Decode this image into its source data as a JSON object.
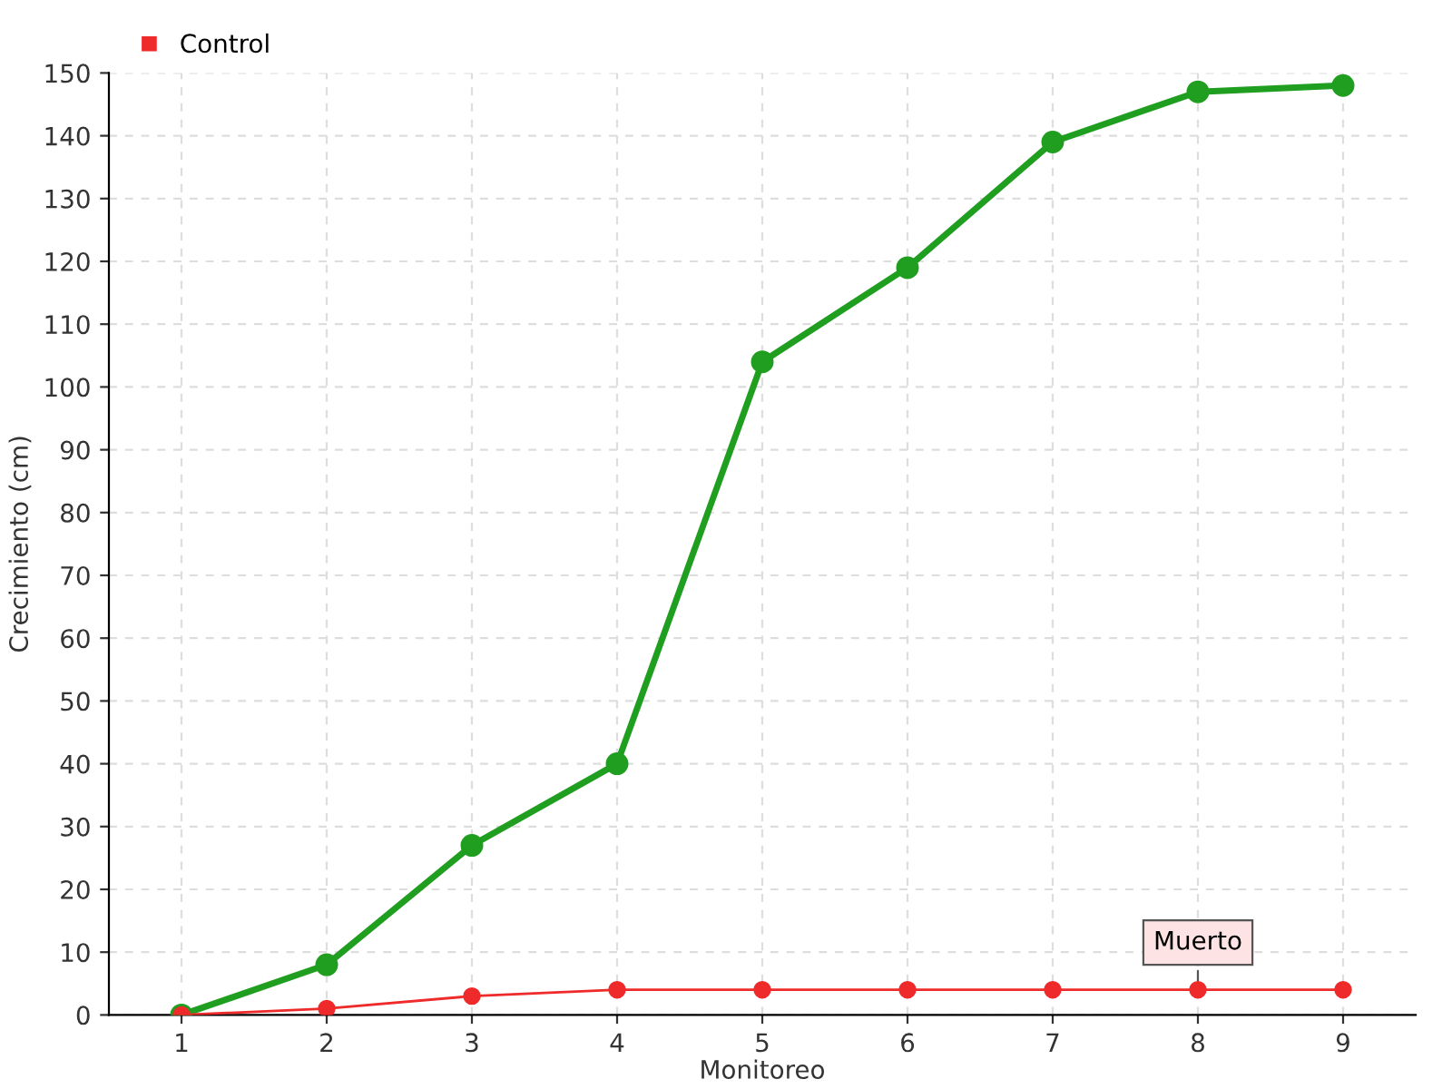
{
  "chart_data": {
    "type": "line",
    "xlabel": "Monitoreo",
    "ylabel": "Crecimiento (cm)",
    "x": [
      1,
      2,
      3,
      4,
      5,
      6,
      7,
      8,
      9
    ],
    "series": [
      {
        "color": "#1f9e1f",
        "values": [
          0,
          8,
          27,
          40,
          104,
          119,
          139,
          147,
          148
        ]
      },
      {
        "name": "Control",
        "color": "#ee2a2a",
        "values": [
          0,
          1,
          3,
          4,
          4,
          4,
          4,
          4,
          4
        ]
      }
    ],
    "xlim": [
      0.5,
      9.5
    ],
    "xticks": [
      1,
      2,
      3,
      4,
      5,
      6,
      7,
      8,
      9
    ],
    "ylim": [
      0,
      150
    ],
    "yticks": [
      0,
      10,
      20,
      30,
      40,
      50,
      60,
      70,
      80,
      90,
      100,
      110,
      120,
      130,
      140,
      150
    ],
    "grid": true,
    "legend": "top left",
    "marker": "circle",
    "line_style": "solid",
    "annotations": [
      {
        "text": "Muerto",
        "x": 8,
        "y": 4
      }
    ]
  }
}
